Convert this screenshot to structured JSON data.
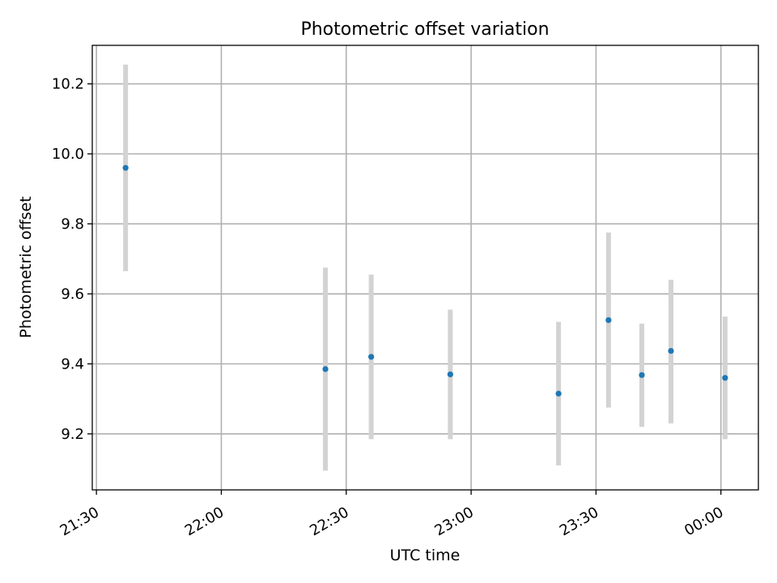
{
  "chart_data": {
    "type": "scatter",
    "title": "Photometric offset variation",
    "xlabel": "UTC time",
    "ylabel": "Photometric offset",
    "x_axis_type": "time",
    "xlim": [
      "21:29",
      "00:09"
    ],
    "ylim": [
      9.04,
      10.31
    ],
    "x_ticks": [
      "21:30",
      "22:00",
      "22:30",
      "23:00",
      "23:30",
      "00:00"
    ],
    "y_ticks": [
      9.2,
      9.4,
      9.6,
      9.8,
      10.0,
      10.2
    ],
    "grid": true,
    "legend": "none",
    "colors": {
      "points": "#1f77b4",
      "errorbars": "#d3d3d3"
    },
    "points": [
      {
        "x": "21:37",
        "y": 9.96,
        "yerr_low": 9.665,
        "yerr_high": 10.255
      },
      {
        "x": "22:25",
        "y": 9.385,
        "yerr_low": 9.095,
        "yerr_high": 9.675
      },
      {
        "x": "22:36",
        "y": 9.42,
        "yerr_low": 9.185,
        "yerr_high": 9.655
      },
      {
        "x": "22:55",
        "y": 9.37,
        "yerr_low": 9.185,
        "yerr_high": 9.555
      },
      {
        "x": "23:21",
        "y": 9.315,
        "yerr_low": 9.11,
        "yerr_high": 9.52
      },
      {
        "x": "23:33",
        "y": 9.525,
        "yerr_low": 9.275,
        "yerr_high": 9.775
      },
      {
        "x": "23:41",
        "y": 9.368,
        "yerr_low": 9.22,
        "yerr_high": 9.515
      },
      {
        "x": "23:48",
        "y": 9.437,
        "yerr_low": 9.23,
        "yerr_high": 9.64
      },
      {
        "x": "00:01",
        "y": 9.36,
        "yerr_low": 9.185,
        "yerr_high": 9.535
      }
    ]
  }
}
